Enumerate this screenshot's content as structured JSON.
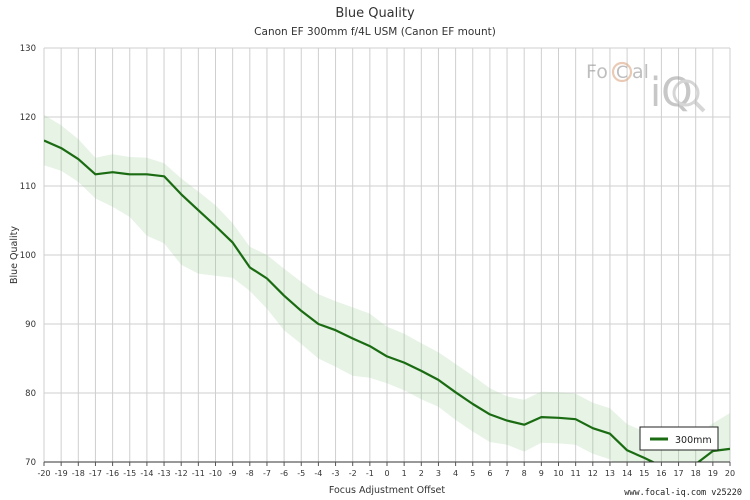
{
  "chart_data": {
    "type": "line",
    "title": "Blue Quality",
    "subtitle": "Canon EF 300mm f/4L USM (Canon EF mount)",
    "xlabel": "Focus Adjustment Offset",
    "ylabel": "Blue Quality",
    "xlim": [
      -20,
      20
    ],
    "ylim": [
      70,
      130
    ],
    "x_ticks": [
      -20,
      -19,
      -18,
      -17,
      -16,
      -15,
      -14,
      -13,
      -12,
      -11,
      -10,
      -9,
      -8,
      -7,
      -6,
      -5,
      -4,
      -3,
      -2,
      -1,
      0,
      1,
      2,
      3,
      4,
      5,
      6,
      7,
      8,
      9,
      10,
      11,
      12,
      13,
      14,
      15,
      16,
      17,
      18,
      19,
      20
    ],
    "y_ticks": [
      70,
      80,
      90,
      100,
      110,
      120,
      130
    ],
    "grid": true,
    "legend_position": "bottom-right",
    "x": [
      -20,
      -19,
      -18,
      -17,
      -16,
      -15,
      -14,
      -13,
      -12,
      -11,
      -10,
      -9,
      -8,
      -7,
      -6,
      -5,
      -4,
      -3,
      -2,
      -1,
      0,
      1,
      2,
      3,
      4,
      5,
      6,
      7,
      8,
      9,
      10,
      11,
      12,
      13,
      14,
      15,
      16,
      17,
      18,
      19,
      20
    ],
    "series": [
      {
        "name": "300mm",
        "color": "#1a6b12",
        "values": [
          116.6,
          115.5,
          113.9,
          111.7,
          112.0,
          111.7,
          111.7,
          111.4,
          108.8,
          106.5,
          104.2,
          101.8,
          98.2,
          96.6,
          94.1,
          91.9,
          90.0,
          89.1,
          87.9,
          86.8,
          85.3,
          84.4,
          83.2,
          81.9,
          80.1,
          78.4,
          76.9,
          76.0,
          75.4,
          76.5,
          76.4,
          76.2,
          74.9,
          74.1,
          71.7,
          70.6,
          69.4,
          69.0,
          69.7,
          71.6,
          71.9
        ],
        "upper": [
          120.3,
          118.8,
          116.8,
          114.1,
          114.6,
          114.2,
          114.1,
          113.3,
          111.1,
          109.2,
          107.2,
          104.6,
          101.2,
          100.0,
          98.0,
          96.1,
          94.3,
          93.3,
          92.4,
          91.5,
          89.6,
          88.6,
          87.2,
          85.9,
          84.2,
          82.5,
          80.7,
          79.5,
          79.0,
          80.2,
          80.1,
          79.9,
          78.6,
          77.8,
          75.5,
          74.4,
          73.4,
          73.2,
          73.8,
          75.6,
          77.1
        ],
        "lower": [
          113.0,
          112.2,
          110.6,
          108.2,
          107.0,
          105.5,
          102.8,
          101.7,
          98.6,
          97.3,
          97.0,
          96.7,
          94.8,
          92.2,
          89.1,
          87.1,
          85.0,
          83.8,
          82.5,
          82.2,
          81.4,
          80.4,
          79.1,
          78.0,
          76.1,
          74.4,
          72.9,
          72.5,
          71.5,
          72.8,
          72.7,
          72.5,
          71.2,
          70.4,
          68.0,
          66.8,
          65.5,
          64.8,
          65.6,
          67.6,
          66.6
        ]
      }
    ]
  },
  "legend": {
    "label": "300mm"
  },
  "watermark": "www.focal-iq.com  v25220",
  "logo": {
    "text": "FoCal iQ"
  }
}
